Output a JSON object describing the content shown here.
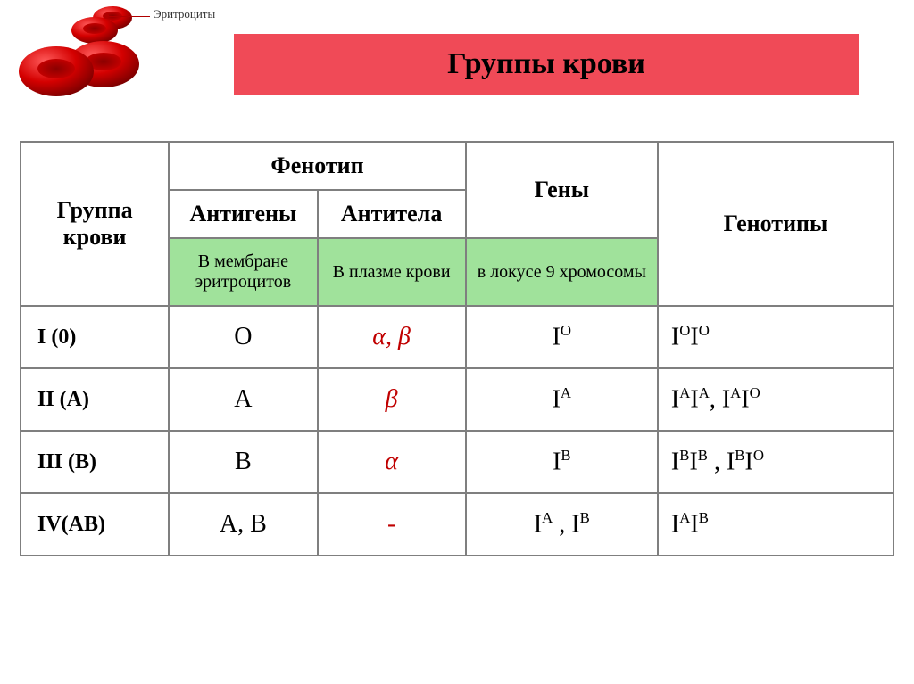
{
  "decor": {
    "cell_label": "Эритроциты"
  },
  "title": "Группы крови",
  "headers": {
    "group": "Группа крови",
    "phenotype": "Фенотип",
    "genes": "Гены",
    "genotypes": "Генотипы",
    "antigens": "Антигены",
    "antibodies": "Антитела"
  },
  "subheaders": {
    "antigens_loc": "В мембране эритроцитов",
    "antibodies_loc": "В плазме крови",
    "genes_loc": "в локусе 9 хромосомы"
  },
  "rows": [
    {
      "label": "I (0)",
      "antigen": "O",
      "antibody": "α, β",
      "gene_html": "I<sup>O</sup>",
      "geno_html": "I<sup>O</sup>I<sup>O</sup>"
    },
    {
      "label": "II (A)",
      "antigen": "A",
      "antibody": "β",
      "gene_html": "I<sup>A</sup>",
      "geno_html": "I<sup>A</sup>I<sup>A</sup>,  I<sup>A</sup>I<sup>O</sup>"
    },
    {
      "label": "III (B)",
      "antigen": "B",
      "antibody": "α",
      "gene_html": "I<sup>B</sup>",
      "geno_html": "I<sup>B</sup>I<sup>B</sup> , I<sup>B</sup>I<sup>O</sup>"
    },
    {
      "label": "IV(AB)",
      "antigen": "A, B",
      "antibody": "-",
      "gene_html": "I<sup>A</sup> , I<sup>B</sup>",
      "geno_html": "I<sup>A</sup>I<sup>B</sup>"
    }
  ],
  "colors": {
    "title_bg": "#f04a57",
    "green_bg": "#a0e29b",
    "border": "#7f7f7f",
    "red_text": "#c00000"
  }
}
